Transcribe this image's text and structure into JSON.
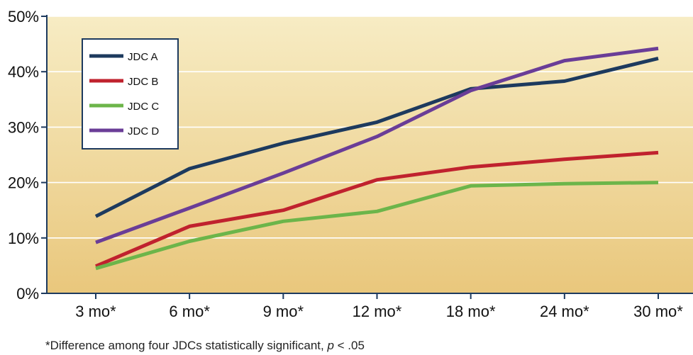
{
  "chart_data": {
    "type": "line",
    "title": "",
    "xlabel": "",
    "ylabel": "",
    "categories": [
      "3 mo*",
      "6 mo*",
      "9 mo*",
      "12 mo*",
      "18 mo*",
      "24 mo*",
      "30 mo*"
    ],
    "y_ticks": [
      "0%",
      "10%",
      "20%",
      "30%",
      "40%",
      "50%"
    ],
    "ylim": [
      0,
      50
    ],
    "grid": "horizontal",
    "legend_position": "top-left",
    "background": [
      "#f7ecc4",
      "#e9c77c"
    ],
    "series": [
      {
        "name": "JDC A",
        "color": "#1d3a5e",
        "values": [
          13.9,
          22.5,
          27.1,
          30.9,
          36.9,
          38.3,
          42.4
        ]
      },
      {
        "name": "JDC B",
        "color": "#c0222e",
        "values": [
          4.9,
          12.1,
          15.0,
          20.5,
          22.8,
          24.2,
          25.4
        ]
      },
      {
        "name": "JDC C",
        "color": "#6cb54a",
        "values": [
          4.5,
          9.4,
          13.0,
          14.8,
          19.4,
          19.8,
          20.0
        ]
      },
      {
        "name": "JDC D",
        "color": "#6a3d97",
        "values": [
          9.2,
          15.4,
          21.7,
          28.3,
          36.6,
          42.0,
          44.2
        ]
      }
    ]
  },
  "footnote": {
    "prefix": "*Difference among four JDCs statistically significant, ",
    "p_symbol": "p",
    "suffix": " < .05"
  }
}
